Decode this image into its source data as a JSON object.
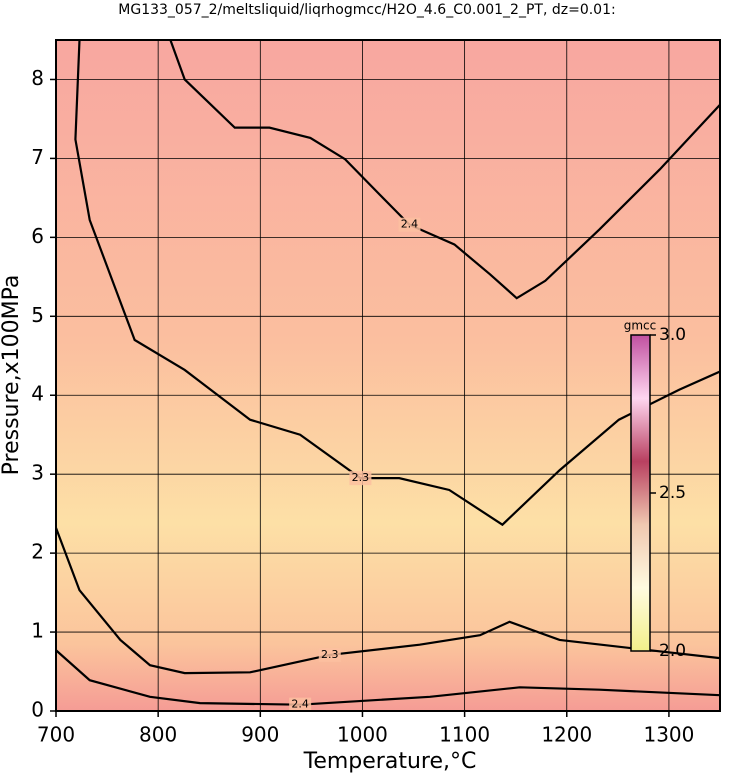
{
  "chart_data": {
    "type": "contour",
    "title": "MG133_057_2/meltsliquid/liqrhogmcc/H2O_4.6_C0.001_2_PT, dz=0.01:",
    "xlabel": "Temperature,°C",
    "ylabel": "Pressure,x100MPa",
    "xlim": [
      700,
      1350
    ],
    "xticks": [
      700,
      800,
      900,
      1000,
      1100,
      1200,
      1300
    ],
    "ylim": [
      0,
      8.5
    ],
    "yticks": [
      0,
      1,
      2,
      3,
      4,
      5,
      6,
      7,
      8
    ],
    "grid": true,
    "color": "#000000",
    "contours": [
      {
        "level": 2.4,
        "x": [
          812,
          826,
          875,
          909,
          949,
          983,
          1017,
          1046,
          1090,
          1125,
          1151,
          1179,
          1232,
          1291,
          1350
        ],
        "y": [
          8.5,
          8.0,
          7.39,
          7.39,
          7.26,
          6.99,
          6.54,
          6.16,
          5.91,
          5.53,
          5.23,
          5.45,
          6.1,
          6.86,
          7.68
        ]
      },
      {
        "level": 2.3,
        "x": [
          723,
          719,
          733,
          777,
          826,
          890,
          939,
          998,
          1036,
          1085,
          1137,
          1193,
          1251,
          1310,
          1350
        ],
        "y": [
          8.5,
          7.24,
          6.22,
          4.7,
          4.32,
          3.69,
          3.5,
          2.95,
          2.95,
          2.8,
          2.36,
          3.05,
          3.69,
          4.07,
          4.3
        ]
      },
      {
        "level": 2.3,
        "x": [
          700,
          723,
          763,
          792,
          826,
          890,
          968,
          1056,
          1115,
          1144,
          1193,
          1281,
          1350
        ],
        "y": [
          2.32,
          1.53,
          0.9,
          0.58,
          0.48,
          0.49,
          0.71,
          0.84,
          0.96,
          1.13,
          0.9,
          0.77,
          0.67
        ]
      },
      {
        "level": 2.4,
        "x": [
          700,
          733,
          792,
          841,
          939,
          1066,
          1154,
          1232,
          1350
        ],
        "y": [
          0.77,
          0.39,
          0.18,
          0.1,
          0.08,
          0.18,
          0.3,
          0.27,
          0.2
        ]
      }
    ],
    "colorbar": {
      "label": "gmcc",
      "lim": [
        2,
        3
      ],
      "ticks": [
        {
          "value": 2,
          "label": "2.0"
        },
        {
          "value": 2.5,
          "label": "2.5"
        },
        {
          "value": 3,
          "label": "3.0"
        }
      ]
    }
  }
}
